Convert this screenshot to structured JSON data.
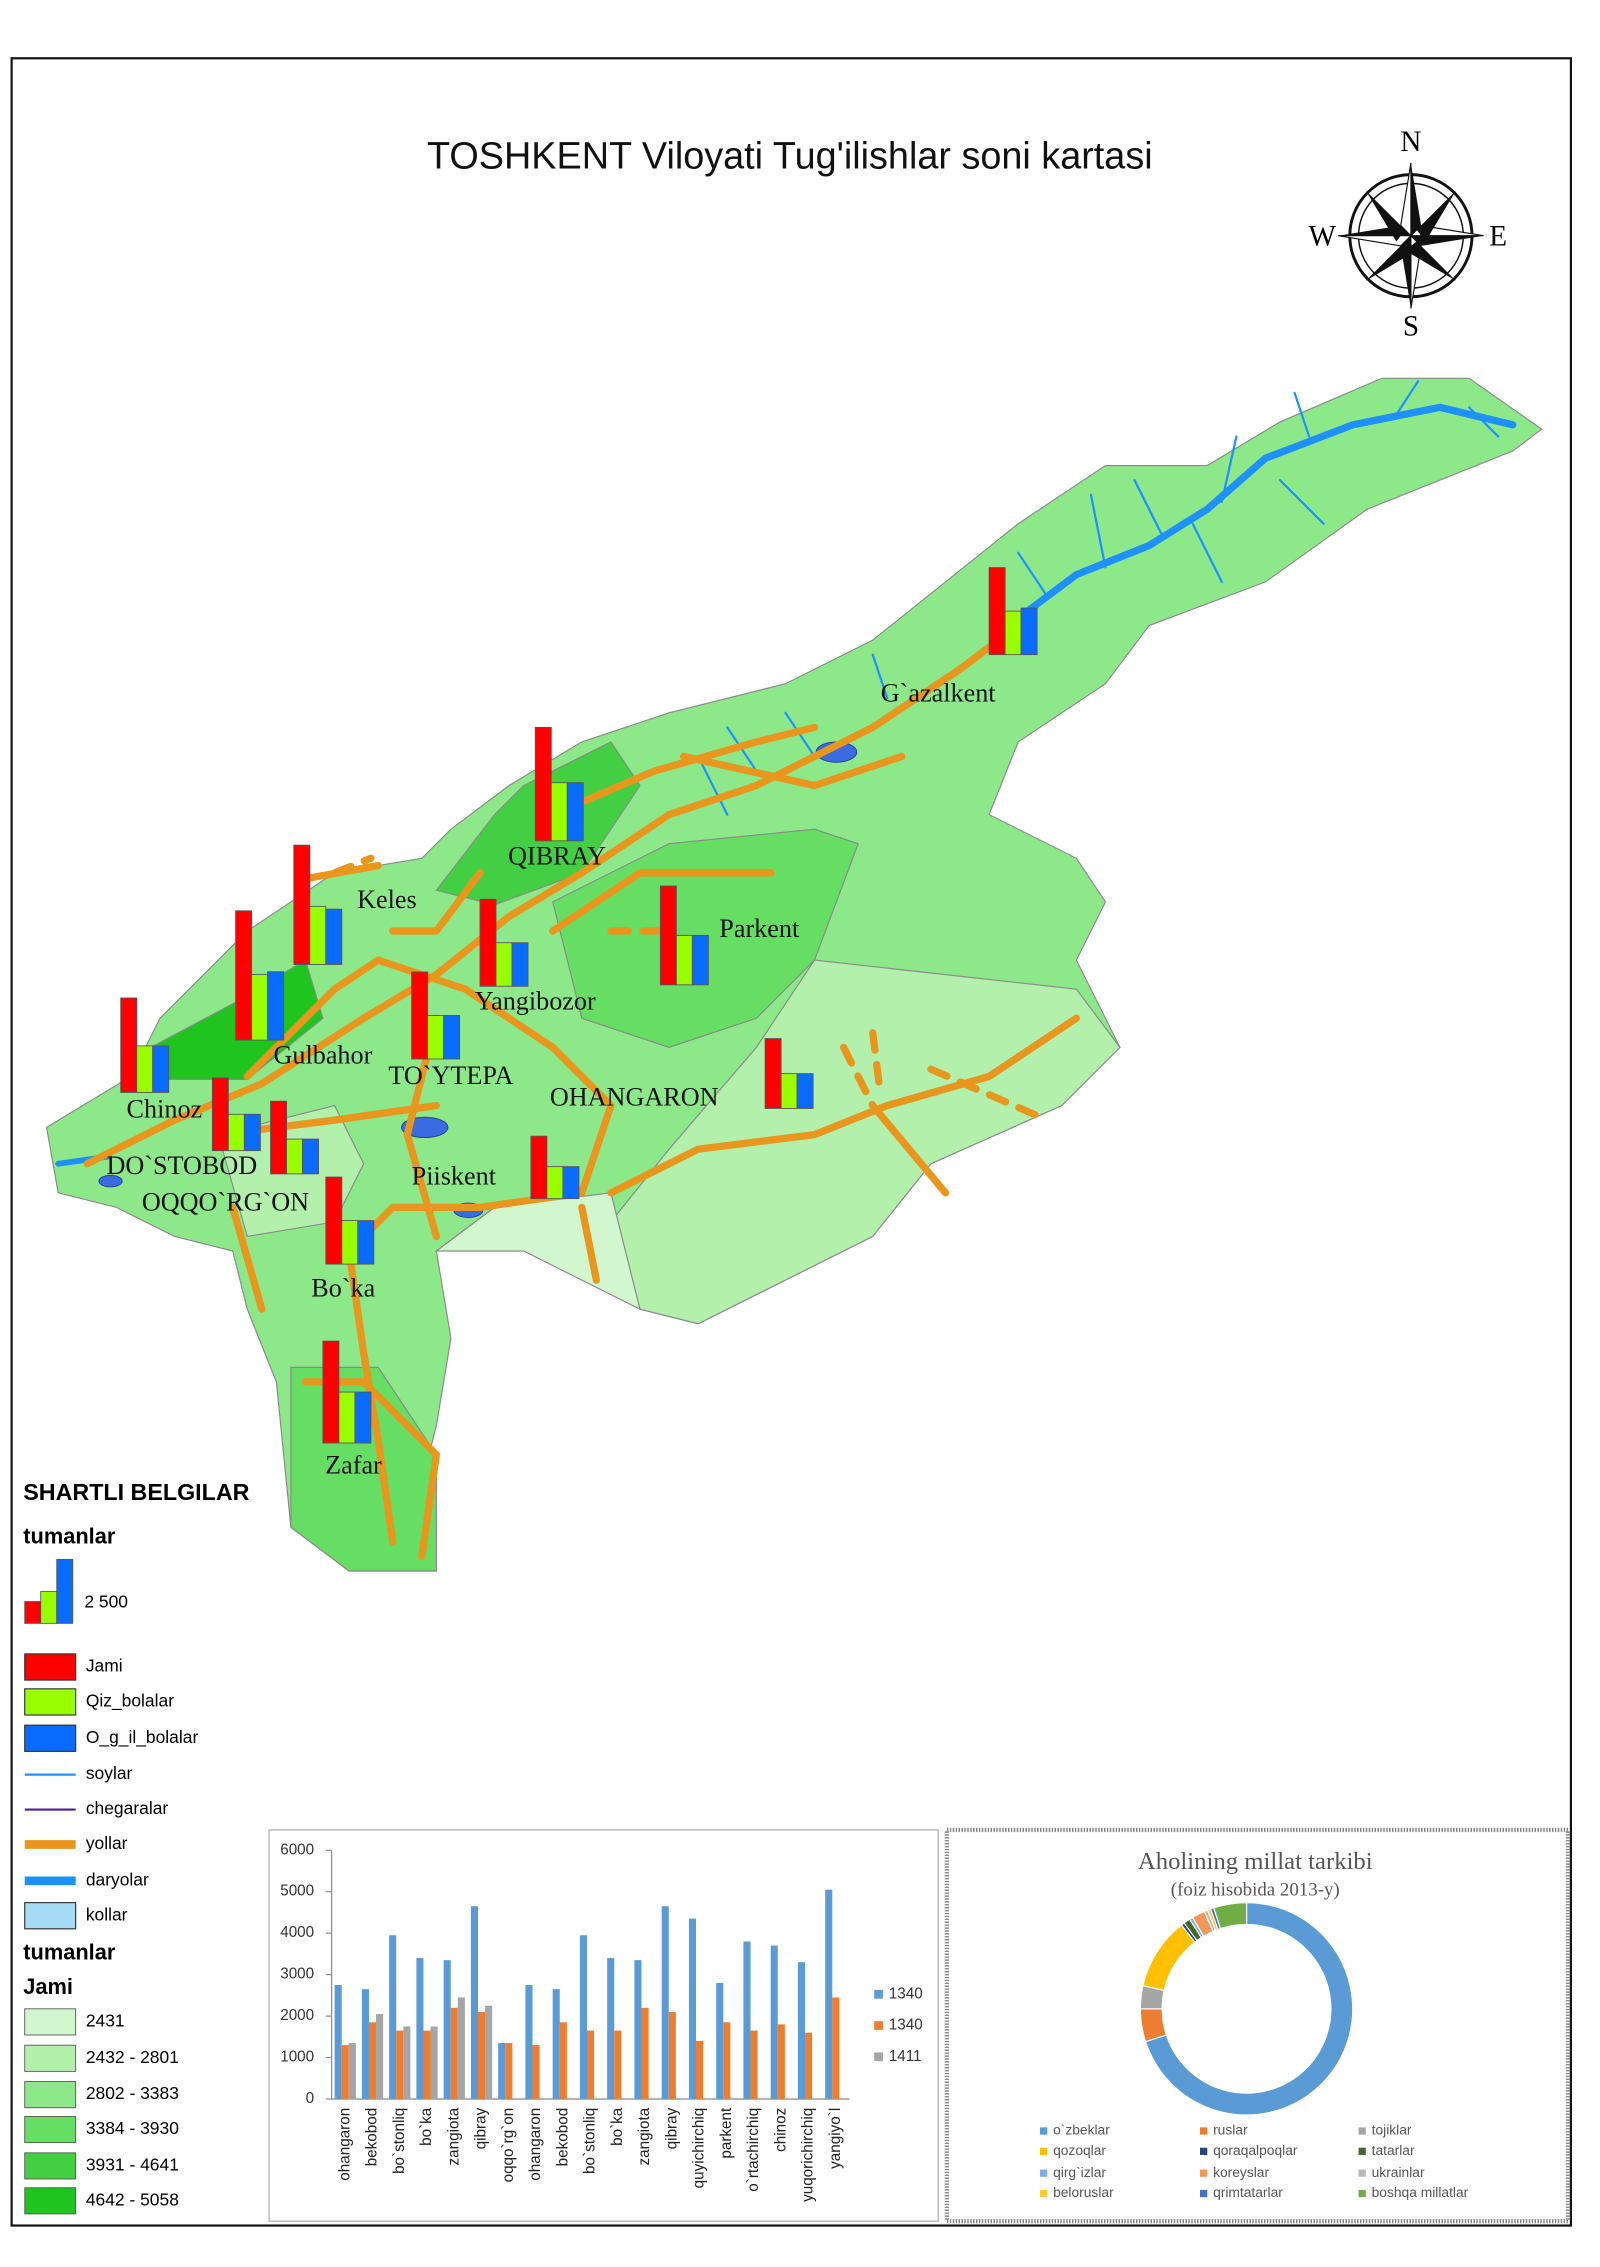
{
  "title": "TOSHKENT Viloyati Tug'ilishlar soni kartasi",
  "compass": {
    "n": "N",
    "e": "E",
    "s": "S",
    "w": "W"
  },
  "map": {
    "labels": [
      "G`azalkent",
      "QIBRAY",
      "Keles",
      "Parkent",
      "Yangibozor",
      "Gulbahor",
      "TO`YTEPA",
      "OHANGARON",
      "Chinoz",
      "DO`STOBOD",
      "OQQO`RG`ON",
      "Piiskent",
      "Bo`ka",
      "Zafar"
    ],
    "symbols": [
      {
        "jami": 3400,
        "qiz": 1700,
        "ogil": 1820
      },
      {
        "jami": 4430,
        "qiz": 2270,
        "ogil": 2270
      },
      {
        "jami": 4660,
        "qiz": 2270,
        "ogil": 2160
      },
      {
        "jami": 3860,
        "qiz": 1930,
        "ogil": 1930
      },
      {
        "jami": 3400,
        "qiz": 1700,
        "ogil": 1700
      },
      {
        "jami": 5050,
        "qiz": 2560,
        "ogil": 2670
      },
      {
        "jami": 3690,
        "qiz": 1820,
        "ogil": 1820
      },
      {
        "jami": 3400,
        "qiz": 1700,
        "ogil": 1700
      },
      {
        "jami": 2730,
        "qiz": 1360,
        "ogil": 1360
      },
      {
        "jami": 2840,
        "qiz": 1420,
        "ogil": 1420
      },
      {
        "jami": 2840,
        "qiz": 1360,
        "ogil": 1360
      },
      {
        "jami": 2440,
        "qiz": 1250,
        "ogil": 1250
      },
      {
        "jami": 3400,
        "qiz": 1700,
        "ogil": 1700
      },
      {
        "jami": 3980,
        "qiz": 1990,
        "ogil": 1990
      }
    ]
  },
  "legend": {
    "title": "SHARTLI BELGILAR",
    "group_1": "tumanlar",
    "scale": {
      "value": 2500,
      "label": "2 500"
    },
    "items": [
      {
        "label": "Jami",
        "color": "#ff0000"
      },
      {
        "label": "Qiz_bolalar",
        "color": "#99ff00"
      },
      {
        "label": "O_g_il_bolalar",
        "color": "#0a6cff"
      },
      {
        "label": "soylar",
        "color": "#1e90ff"
      },
      {
        "label": "chegaralar",
        "color": "#4b1f9a"
      },
      {
        "label": "yollar",
        "color": "#e8961e"
      },
      {
        "label": "daryolar",
        "color": "#1e90ff"
      },
      {
        "label": "kollar",
        "color": "#a6dcf5"
      }
    ],
    "group_2": "tumanlar",
    "subtitle": "Jami",
    "classes": [
      {
        "label": "2431",
        "color": "#d2f7cf"
      },
      {
        "label": "2432 - 2801",
        "color": "#b2f0ac"
      },
      {
        "label": "2802 - 3383",
        "color": "#8de88a"
      },
      {
        "label": "3384 - 3930",
        "color": "#66dd63"
      },
      {
        "label": "3931 - 4641",
        "color": "#43cf43"
      },
      {
        "label": "4642 - 5058",
        "color": "#1fc41f"
      }
    ]
  },
  "chart_data": [
    {
      "type": "bar",
      "categories": [
        "ohangaron",
        "bekobod",
        "bo`stonliq",
        "bo`ka",
        "zangiota",
        "qibray",
        "oqqo`rg`on",
        "ohangaron",
        "bekobod",
        "bo`stonliq",
        "bo`ka",
        "zangiota",
        "qibray",
        "quyichirchiq",
        "parkent",
        "o`rtachirchiq",
        "chinoz",
        "yuqorichirchiq",
        "yangiyo`l"
      ],
      "series": [
        {
          "name": "1340",
          "color": "#5b9bd5",
          "values": [
            2750,
            2650,
            3950,
            3400,
            3350,
            4650,
            1350,
            2750,
            2650,
            3950,
            3400,
            3350,
            4650,
            4350,
            2800,
            3800,
            3700,
            3300,
            5050
          ]
        },
        {
          "name": "1340",
          "color": "#ed7d31",
          "values": [
            1300,
            1850,
            1650,
            1650,
            2200,
            2100,
            1350,
            1300,
            1850,
            1650,
            1650,
            2200,
            2100,
            1400,
            1850,
            1650,
            1800,
            1600,
            2450
          ]
        },
        {
          "name": "1411",
          "color": "#a5a5a5",
          "values": [
            1350,
            2050,
            1750,
            1750,
            2450,
            2250,
            null,
            null,
            null,
            null,
            null,
            null,
            null,
            null,
            null,
            null,
            null,
            null,
            null
          ]
        }
      ],
      "ylim": [
        0,
        6000
      ],
      "yticks": [
        0,
        1000,
        2000,
        3000,
        4000,
        5000,
        6000
      ],
      "legend": "right"
    },
    {
      "type": "donut",
      "title": "Aholining millat tarkibi",
      "subtitle": "(foiz hisobida 2013-y)",
      "categories": [
        "o`zbeklar",
        "ruslar",
        "tojiklar",
        "qozoqlar",
        "qoraqalpoqlar",
        "tatarlar",
        "qirg`izlar",
        "koreyslar",
        "ukrainlar",
        "beloruslar",
        "qrimtatarlar",
        "boshqa millatlar"
      ],
      "values": [
        70,
        5,
        3.5,
        11,
        0.5,
        1,
        0.5,
        2,
        0.5,
        0.5,
        0.5,
        5
      ],
      "colors": [
        "#5b9bd5",
        "#ed7d31",
        "#a5a5a5",
        "#ffc000",
        "#264478",
        "#43682b",
        "#7cafdd",
        "#f1975a",
        "#b7b7b7",
        "#ffcd33",
        "#4472c4",
        "#70ad47"
      ],
      "legend": "bottom"
    }
  ]
}
